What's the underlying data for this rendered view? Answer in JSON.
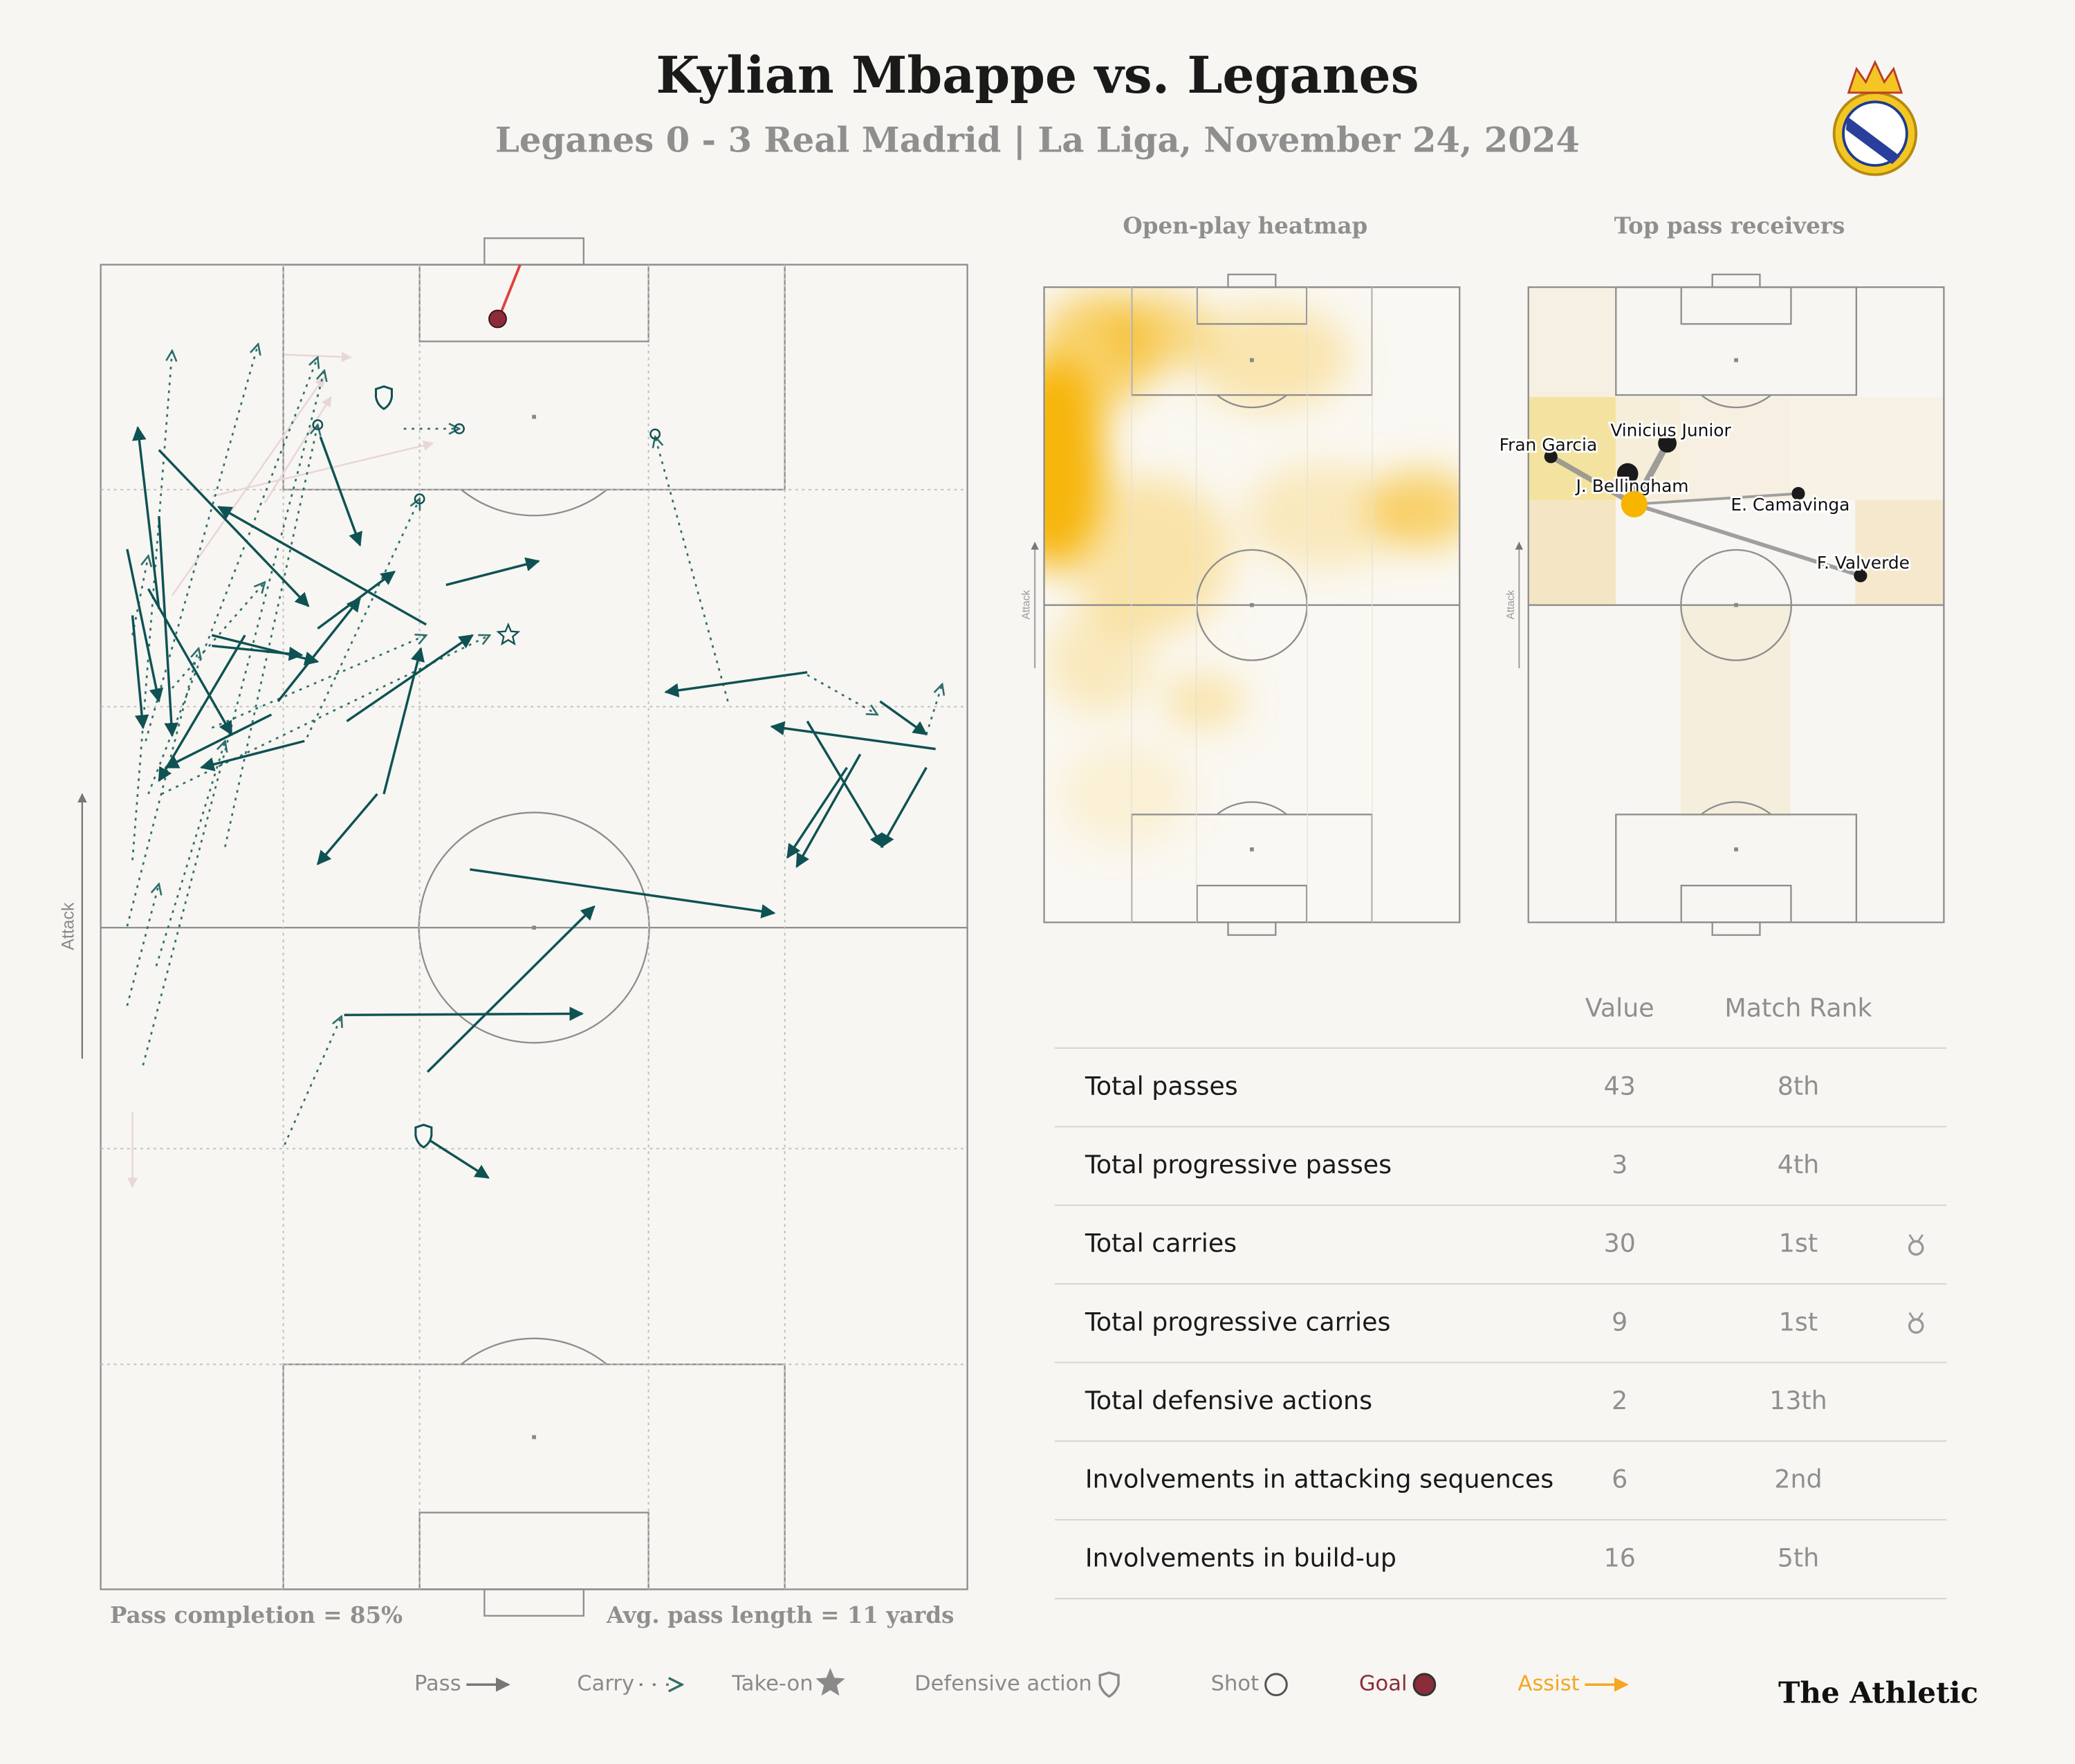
{
  "header": {
    "title": "Kylian Mbappe vs. Leganes",
    "subtitle": "Leganes 0 - 3 Real Madrid | La Liga, November 24, 2024"
  },
  "main_pitch": {
    "attack_label": "Attack",
    "pass_completion": "Pass completion = 85%",
    "avg_pass_length": "Avg. pass length = 11 yards"
  },
  "heatmap": {
    "title": "Open-play heatmap",
    "attack_label": "Attack"
  },
  "pass_receivers": {
    "title": "Top pass receivers",
    "attack_label": "Attack",
    "players": [
      "Fran Garcia",
      "Vinicius Junior",
      "J. Bellingham",
      "E. Camavinga",
      "F. Valverde"
    ]
  },
  "table": {
    "columns": [
      "Value",
      "Match Rank"
    ],
    "rows": [
      [
        "Total passes",
        "43",
        "8th"
      ],
      [
        "Total progressive passes",
        "3",
        "4th"
      ],
      [
        "Total carries",
        "30",
        "1st"
      ],
      [
        "Total progressive carries",
        "9",
        "1st"
      ],
      [
        "Total defensive actions",
        "2",
        "13th"
      ],
      [
        "Involvements in attacking sequences",
        "6",
        "2nd"
      ],
      [
        "Involvements in build-up",
        "16",
        "5th"
      ]
    ]
  },
  "legend": [
    "Pass",
    "Carry",
    "Take-on",
    "Defensive action",
    "Shot",
    "Goal",
    "Assist"
  ],
  "brand": "The Athletic"
}
